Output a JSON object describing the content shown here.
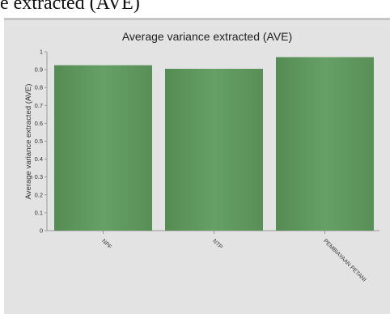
{
  "page_heading": "e extracted (AVE)",
  "chart_data": {
    "type": "bar",
    "title": "Average variance extracted (AVE)",
    "xlabel": "",
    "ylabel": "Average variance extracted (AVE)",
    "categories": [
      "NPF",
      "NTP",
      "PEMBIAYAAN PETANI"
    ],
    "values": [
      0.925,
      0.905,
      0.97
    ],
    "ylim": [
      0,
      1
    ],
    "yticks": [
      0,
      0.1,
      0.2,
      0.3,
      0.4,
      0.5,
      0.6,
      0.7,
      0.8,
      0.9,
      1
    ],
    "bar_color": "#5f955f",
    "background_color": "#e3e3e3",
    "grid": false,
    "legend": "none"
  }
}
